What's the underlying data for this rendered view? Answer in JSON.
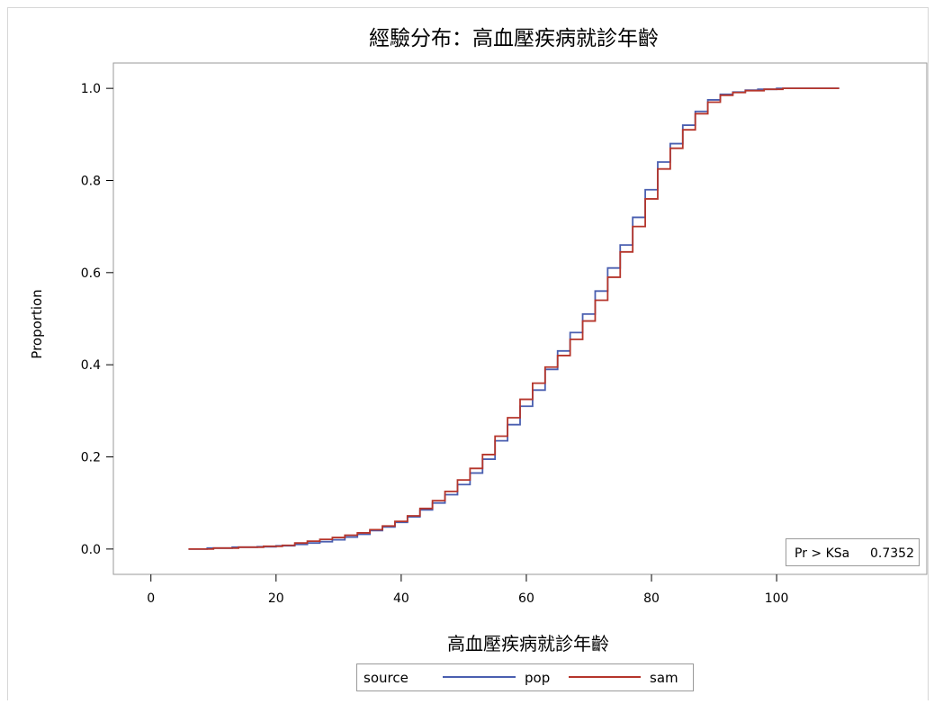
{
  "chart_data": {
    "type": "line",
    "step": true,
    "title": "經驗分布：高血壓疾病就診年齡",
    "xlabel": "高血壓疾病就診年齡",
    "ylabel": "Proportion",
    "xlim": [
      -6,
      124
    ],
    "ylim": [
      -0.055,
      1.055
    ],
    "x_ticks": [
      0,
      20,
      40,
      60,
      80,
      100
    ],
    "y_ticks": [
      0.0,
      0.2,
      0.4,
      0.6,
      0.8,
      1.0
    ],
    "x_tick_labels": [
      "0",
      "20",
      "40",
      "60",
      "80",
      "100"
    ],
    "y_tick_labels": [
      "0.0",
      "0.2",
      "0.4",
      "0.6",
      "0.8",
      "1.0"
    ],
    "grid": false,
    "legend": {
      "title": "source",
      "position": "bottom",
      "entries": [
        {
          "name": "pop",
          "color": "#4a5fb0"
        },
        {
          "name": "sam",
          "color": "#b5352b"
        }
      ]
    },
    "annotation": {
      "label": "Pr > KSa",
      "value": "0.7352",
      "position": "bottom-right"
    },
    "series": [
      {
        "name": "pop",
        "color": "#4a5fb0",
        "x": [
          6,
          9,
          13,
          17,
          20,
          23,
          25,
          27,
          29,
          31,
          33,
          35,
          37,
          39,
          41,
          43,
          45,
          47,
          49,
          51,
          53,
          55,
          57,
          59,
          61,
          63,
          65,
          67,
          69,
          71,
          73,
          75,
          77,
          79,
          81,
          83,
          85,
          87,
          89,
          91,
          93,
          95,
          97,
          100,
          110
        ],
        "y": [
          0.0,
          0.002,
          0.004,
          0.005,
          0.007,
          0.01,
          0.013,
          0.016,
          0.02,
          0.026,
          0.032,
          0.04,
          0.048,
          0.058,
          0.07,
          0.085,
          0.1,
          0.118,
          0.14,
          0.165,
          0.195,
          0.235,
          0.27,
          0.31,
          0.345,
          0.39,
          0.43,
          0.47,
          0.51,
          0.56,
          0.61,
          0.66,
          0.72,
          0.78,
          0.84,
          0.88,
          0.92,
          0.95,
          0.975,
          0.987,
          0.992,
          0.996,
          0.998,
          1.0,
          1.0
        ]
      },
      {
        "name": "sam",
        "color": "#b5352b",
        "x": [
          6,
          10,
          14,
          18,
          21,
          23,
          25,
          27,
          29,
          31,
          33,
          35,
          37,
          39,
          41,
          43,
          45,
          47,
          49,
          51,
          53,
          55,
          57,
          59,
          61,
          63,
          65,
          67,
          69,
          71,
          73,
          75,
          77,
          79,
          81,
          83,
          85,
          87,
          89,
          91,
          93,
          95,
          98,
          101,
          110
        ],
        "y": [
          0.0,
          0.002,
          0.004,
          0.006,
          0.008,
          0.013,
          0.017,
          0.021,
          0.025,
          0.03,
          0.035,
          0.042,
          0.05,
          0.06,
          0.072,
          0.088,
          0.105,
          0.125,
          0.15,
          0.175,
          0.205,
          0.245,
          0.285,
          0.325,
          0.36,
          0.395,
          0.42,
          0.455,
          0.495,
          0.54,
          0.59,
          0.645,
          0.7,
          0.76,
          0.825,
          0.87,
          0.91,
          0.945,
          0.97,
          0.985,
          0.991,
          0.995,
          0.998,
          1.0,
          1.0
        ]
      }
    ]
  }
}
